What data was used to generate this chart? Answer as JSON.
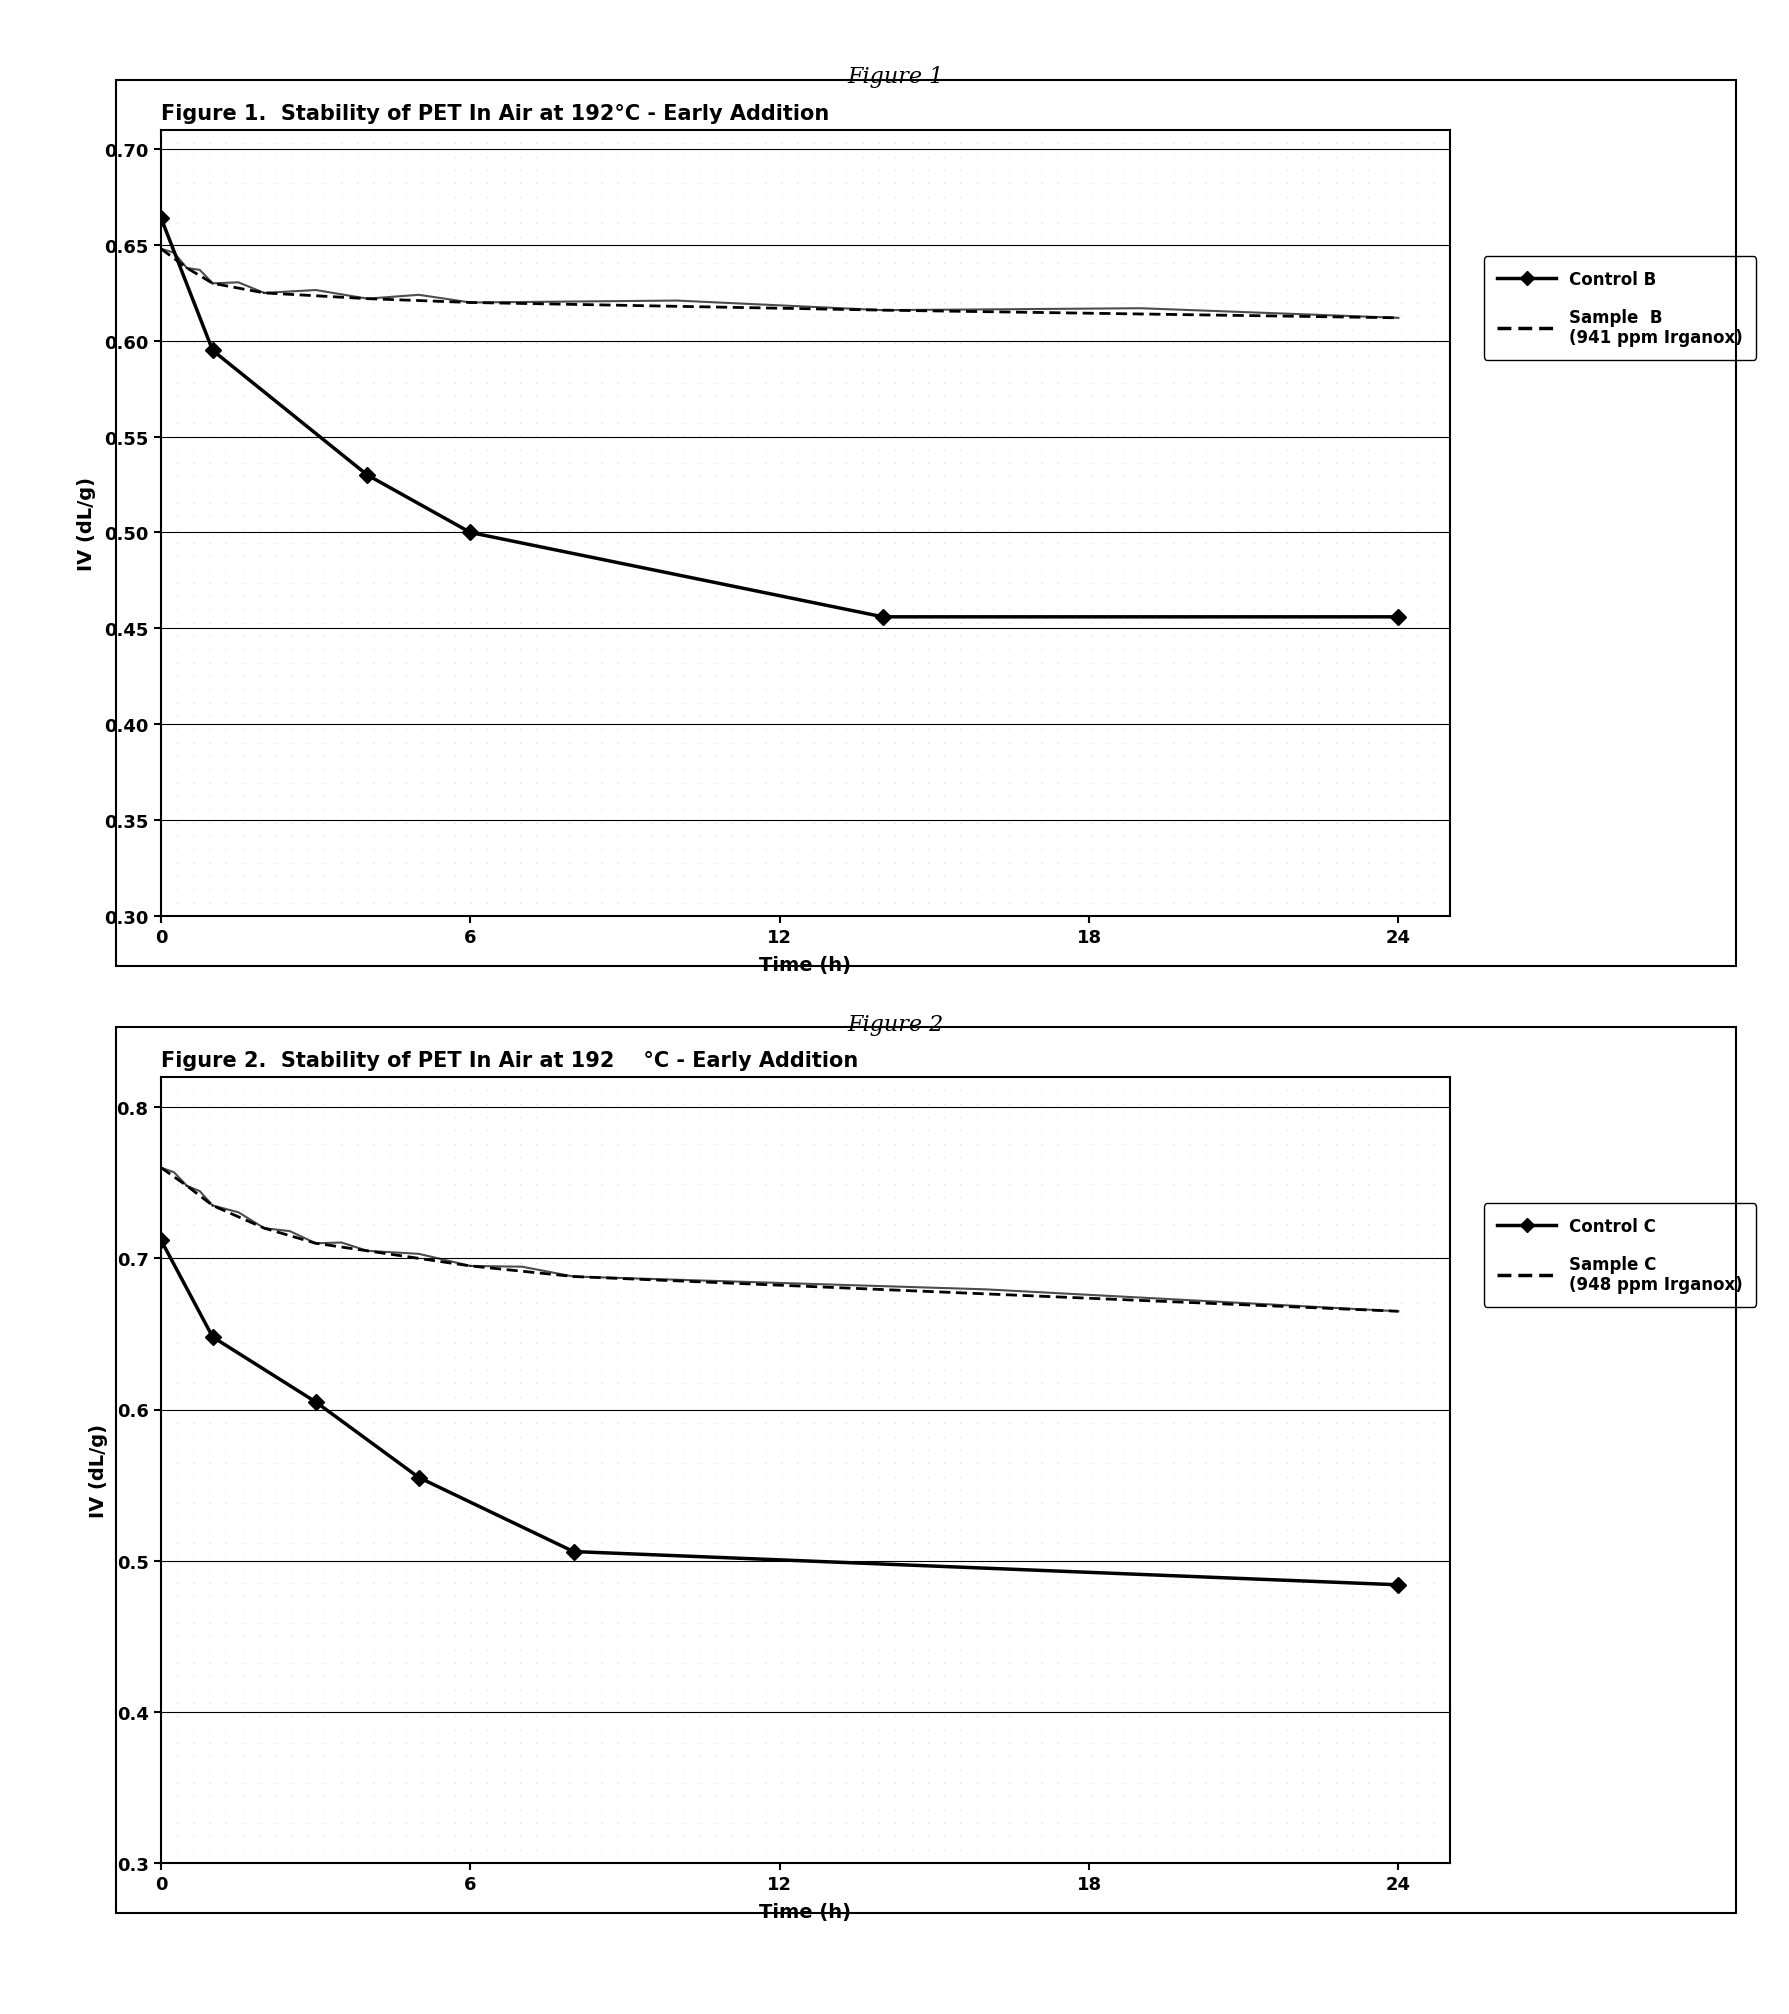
{
  "fig1_title": "Figure 1.  Stability of PET In Air at 192°C - Early Addition",
  "fig2_title_part1": "Figure 2.  Stability of PET In Air at 192    ",
  "fig2_title_part2": "°C - Early Addition",
  "page_title1": "Figure 1",
  "page_title2": "Figure 2",
  "fig1_control_x": [
    0,
    1,
    4,
    6,
    14,
    24
  ],
  "fig1_control_y": [
    0.664,
    0.595,
    0.53,
    0.5,
    0.456,
    0.456
  ],
  "fig1_sample_x": [
    0,
    0.5,
    1,
    2,
    4,
    6,
    14,
    24
  ],
  "fig1_sample_y": [
    0.648,
    0.638,
    0.63,
    0.625,
    0.622,
    0.62,
    0.616,
    0.612
  ],
  "fig2_control_x": [
    0,
    1,
    3,
    5,
    8,
    24
  ],
  "fig2_control_y": [
    0.712,
    0.648,
    0.605,
    0.555,
    0.506,
    0.484
  ],
  "fig2_sample_x": [
    0,
    0.5,
    1,
    2,
    3,
    4,
    6,
    8,
    24
  ],
  "fig2_sample_y": [
    0.76,
    0.748,
    0.735,
    0.72,
    0.71,
    0.705,
    0.695,
    0.688,
    0.665
  ],
  "fig1_ylim": [
    0.3,
    0.71
  ],
  "fig1_yticks": [
    0.3,
    0.35,
    0.4,
    0.45,
    0.5,
    0.55,
    0.6,
    0.65,
    0.7
  ],
  "fig2_ylim": [
    0.3,
    0.82
  ],
  "fig2_yticks": [
    0.3,
    0.4,
    0.5,
    0.6,
    0.7,
    0.8
  ],
  "xlim": [
    0,
    25
  ],
  "xticks": [
    0,
    6,
    12,
    18,
    24
  ],
  "xlabel": "Time (h)",
  "ylabel": "IV (dL/g)",
  "legend1_control": "Control B",
  "legend1_sample": "Sample  B\n(941 ppm Irganox)",
  "legend2_control": "Control C",
  "legend2_sample": "Sample C\n(948 ppm Irganox)",
  "stipple_color": "#d8d8d8",
  "title_fontsize": 15,
  "axis_fontsize": 14,
  "tick_fontsize": 13,
  "page_title_fontsize": 16
}
